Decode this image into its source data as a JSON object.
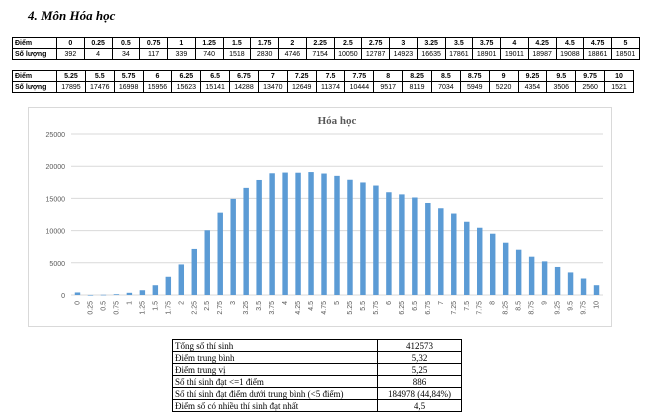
{
  "heading": "4.  Môn Hóa học",
  "table1": {
    "label_row": "Điểm",
    "label_count": "Số lượng",
    "scores": [
      "0",
      "0.25",
      "0.5",
      "0.75",
      "1",
      "1.25",
      "1.5",
      "1.75",
      "2",
      "2.25",
      "2.5",
      "2.75",
      "3",
      "3.25",
      "3.5",
      "3.75",
      "4",
      "4.25",
      "4.5",
      "4.75",
      "5"
    ],
    "counts": [
      "392",
      "4",
      "34",
      "117",
      "339",
      "740",
      "1518",
      "2830",
      "4746",
      "7154",
      "10050",
      "12787",
      "14923",
      "16635",
      "17861",
      "18901",
      "19011",
      "18987",
      "19088",
      "18861",
      "18501"
    ]
  },
  "table2": {
    "label_row": "Điểm",
    "label_count": "Số lượng",
    "scores": [
      "5.25",
      "5.5",
      "5.75",
      "6",
      "6.25",
      "6.5",
      "6.75",
      "7",
      "7.25",
      "7.5",
      "7.75",
      "8",
      "8.25",
      "8.5",
      "8.75",
      "9",
      "9.25",
      "9.5",
      "9.75",
      "10"
    ],
    "counts": [
      "17895",
      "17476",
      "16998",
      "15956",
      "15623",
      "15141",
      "14288",
      "13470",
      "12649",
      "11374",
      "10444",
      "9517",
      "8119",
      "7034",
      "5949",
      "5220",
      "4354",
      "3506",
      "2560",
      "1521"
    ]
  },
  "chart_data": {
    "type": "bar",
    "title": "Hóa học",
    "xlabel": "",
    "ylabel": "",
    "ylim": [
      0,
      25000
    ],
    "yticks": [
      0,
      5000,
      10000,
      15000,
      20000,
      25000
    ],
    "grid": true,
    "bar_color": "#5b9bd5",
    "categories": [
      "0",
      "0.25",
      "0.5",
      "0.75",
      "1",
      "1.25",
      "1.5",
      "1.75",
      "2",
      "2.25",
      "2.5",
      "2.75",
      "3",
      "3.25",
      "3.5",
      "3.75",
      "4",
      "4.25",
      "4.5",
      "4.75",
      "5",
      "5.25",
      "5.5",
      "5.75",
      "6",
      "6.25",
      "6.5",
      "6.75",
      "7",
      "7.25",
      "7.5",
      "7.75",
      "8",
      "8.25",
      "8.5",
      "8.75",
      "9",
      "9.25",
      "9.5",
      "9.75",
      "10"
    ],
    "values": [
      392,
      4,
      34,
      117,
      339,
      740,
      1518,
      2830,
      4746,
      7154,
      10050,
      12787,
      14923,
      16635,
      17861,
      18901,
      19011,
      18987,
      19088,
      18861,
      18501,
      17895,
      17476,
      16998,
      15956,
      15623,
      15141,
      14288,
      13470,
      12649,
      11374,
      10444,
      9517,
      8119,
      7034,
      5949,
      5220,
      4354,
      3506,
      2560,
      1521
    ]
  },
  "summary": {
    "rows": [
      {
        "label": "Tổng số thí sinh",
        "value": "412573"
      },
      {
        "label": "Điểm trung bình",
        "value": "5,32"
      },
      {
        "label": "Điểm trung vị",
        "value": "5,25"
      },
      {
        "label": "Số thí sinh đạt <=1 điểm",
        "value": "886"
      },
      {
        "label": "Số thí sinh đạt điểm dưới trung bình (<5 điểm)",
        "value": "184978 (44,84%)"
      },
      {
        "label": "Điểm số có nhiều thí sinh đạt nhất",
        "value": "4,5"
      }
    ]
  }
}
